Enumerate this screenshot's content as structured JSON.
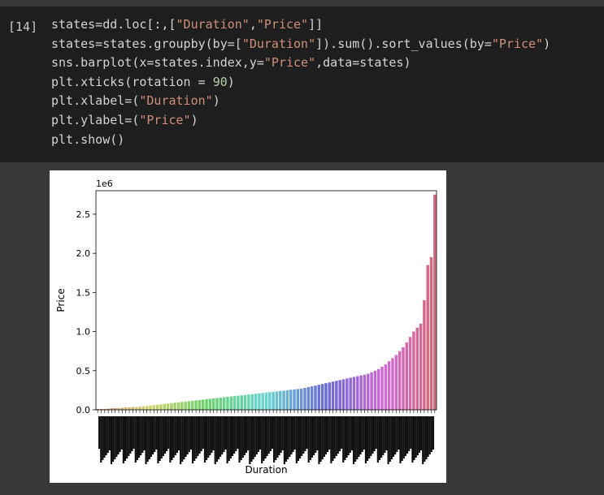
{
  "cell": {
    "prompt": "[14]",
    "code_lines": [
      [
        {
          "t": "states=dd.loc[:,[",
          "c": "pl"
        },
        {
          "t": "\"Duration\"",
          "c": "str"
        },
        {
          "t": ",",
          "c": "pl"
        },
        {
          "t": "\"Price\"",
          "c": "str"
        },
        {
          "t": "]]",
          "c": "pl"
        }
      ],
      [
        {
          "t": "states=states.groupby(by=[",
          "c": "pl"
        },
        {
          "t": "\"Duration\"",
          "c": "str"
        },
        {
          "t": "]).sum().sort_values(by=",
          "c": "pl"
        },
        {
          "t": "\"Price\"",
          "c": "str"
        },
        {
          "t": ")",
          "c": "pl"
        }
      ],
      [
        {
          "t": "sns.barplot(x=states.index,y=",
          "c": "pl"
        },
        {
          "t": "\"Price\"",
          "c": "str"
        },
        {
          "t": ",data=states)",
          "c": "pl"
        }
      ],
      [
        {
          "t": "plt.xticks(rotation = ",
          "c": "pl"
        },
        {
          "t": "90",
          "c": "num"
        },
        {
          "t": ")",
          "c": "pl"
        }
      ],
      [
        {
          "t": "plt.xlabel=(",
          "c": "pl"
        },
        {
          "t": "\"Duration\"",
          "c": "str"
        },
        {
          "t": ")",
          "c": "pl"
        }
      ],
      [
        {
          "t": "plt.ylabel=(",
          "c": "pl"
        },
        {
          "t": "\"Price\"",
          "c": "str"
        },
        {
          "t": ")",
          "c": "pl"
        }
      ],
      [
        {
          "t": "plt.show()",
          "c": "pl"
        }
      ]
    ]
  },
  "chart_data": {
    "type": "bar",
    "xlabel": "Duration",
    "ylabel": "Price",
    "offset_label": "1e6",
    "ylim": [
      0,
      2.8
    ],
    "yticks": [
      0.0,
      0.5,
      1.0,
      1.5,
      2.0,
      2.5
    ],
    "ytick_labels": [
      "0.0",
      "0.5",
      "1.0",
      "1.5",
      "2.0",
      "2.5"
    ],
    "values": [
      0.01,
      0.01,
      0.01,
      0.015,
      0.02,
      0.02,
      0.02,
      0.025,
      0.03,
      0.03,
      0.035,
      0.035,
      0.04,
      0.045,
      0.05,
      0.055,
      0.06,
      0.065,
      0.07,
      0.075,
      0.08,
      0.085,
      0.09,
      0.095,
      0.1,
      0.105,
      0.11,
      0.115,
      0.12,
      0.125,
      0.13,
      0.135,
      0.14,
      0.145,
      0.15,
      0.155,
      0.16,
      0.165,
      0.17,
      0.175,
      0.18,
      0.185,
      0.19,
      0.195,
      0.2,
      0.205,
      0.21,
      0.215,
      0.22,
      0.225,
      0.23,
      0.235,
      0.24,
      0.245,
      0.25,
      0.255,
      0.26,
      0.265,
      0.27,
      0.28,
      0.29,
      0.3,
      0.31,
      0.32,
      0.33,
      0.34,
      0.35,
      0.36,
      0.37,
      0.38,
      0.39,
      0.4,
      0.41,
      0.42,
      0.43,
      0.44,
      0.45,
      0.46,
      0.48,
      0.5,
      0.52,
      0.55,
      0.58,
      0.62,
      0.66,
      0.7,
      0.75,
      0.8,
      0.86,
      0.93,
      1.0,
      1.05,
      1.1,
      1.4,
      1.85,
      1.95,
      2.75
    ]
  }
}
